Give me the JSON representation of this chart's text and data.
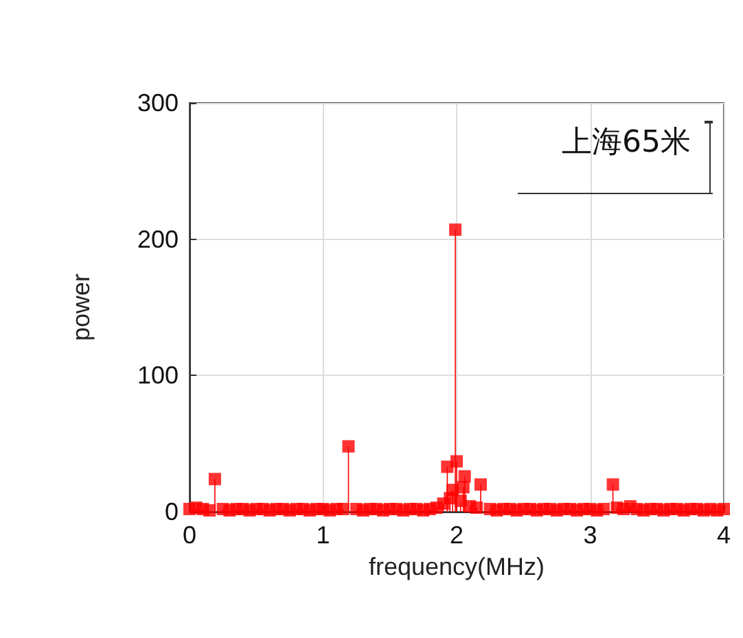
{
  "chart_data": {
    "type": "lollipop",
    "xlabel": "frequency(MHz)",
    "ylabel": "power",
    "annotations": [
      "上海65米"
    ],
    "series": [
      {
        "color": "#ff0000",
        "x": [
          0,
          0.05,
          0.1,
          0.15,
          0.19,
          0.25,
          0.3,
          0.35,
          0.4,
          0.45,
          0.5,
          0.55,
          0.6,
          0.65,
          0.7,
          0.75,
          0.8,
          0.85,
          0.9,
          0.95,
          1,
          1.05,
          1.1,
          1.15,
          1.19,
          1.25,
          1.3,
          1.35,
          1.4,
          1.45,
          1.5,
          1.55,
          1.6,
          1.65,
          1.7,
          1.75,
          1.8,
          1.85,
          1.9,
          1.93,
          1.95,
          1.97,
          1.99,
          2,
          2.03,
          2.05,
          2.06,
          2.1,
          2.15,
          2.18,
          2.25,
          2.3,
          2.35,
          2.4,
          2.45,
          2.5,
          2.55,
          2.6,
          2.65,
          2.7,
          2.75,
          2.8,
          2.85,
          2.9,
          2.95,
          3,
          3.05,
          3.1,
          3.17,
          3.2,
          3.25,
          3.3,
          3.35,
          3.4,
          3.45,
          3.5,
          3.55,
          3.6,
          3.65,
          3.7,
          3.75,
          3.8,
          3.85,
          3.9,
          3.95,
          4
        ],
        "values": [
          2,
          3,
          2,
          1,
          24,
          2,
          1,
          2,
          2,
          1,
          2,
          2,
          1,
          2,
          2,
          1,
          2,
          2,
          1,
          2,
          2,
          1,
          2,
          2,
          48,
          2,
          1,
          2,
          2,
          1,
          2,
          2,
          1,
          2,
          2,
          1,
          2,
          3,
          6,
          33,
          10,
          16,
          207,
          37,
          8,
          18,
          26,
          4,
          3,
          20,
          2,
          1,
          2,
          2,
          1,
          2,
          2,
          1,
          2,
          2,
          1,
          2,
          2,
          1,
          2,
          2,
          1,
          2,
          20,
          3,
          2,
          4,
          2,
          1,
          2,
          2,
          1,
          2,
          2,
          1,
          2,
          2,
          1,
          2,
          1,
          2
        ]
      }
    ],
    "xlim": [
      0,
      4
    ],
    "xticks": [
      0,
      1,
      2,
      3,
      4
    ],
    "ylim": [
      0,
      300
    ],
    "yticks": [
      0,
      100,
      200,
      300
    ],
    "grid": true,
    "marker": "square"
  }
}
